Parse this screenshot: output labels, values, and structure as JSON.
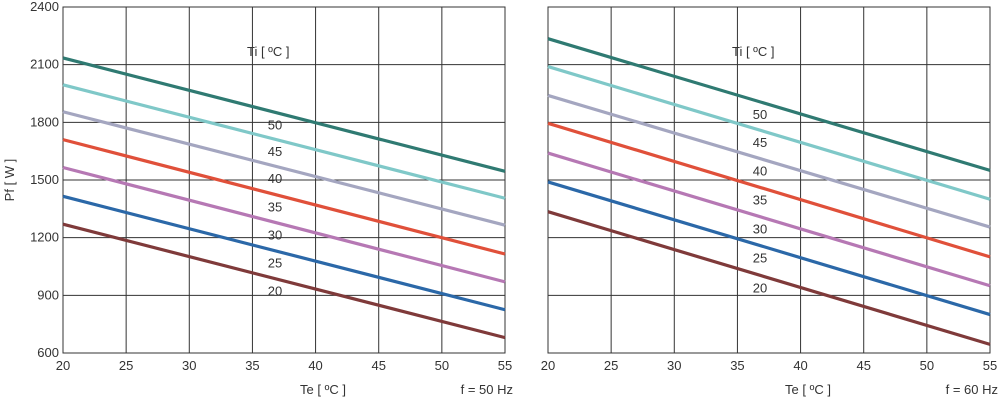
{
  "chart_data": [
    {
      "type": "line",
      "ylabel": "Pf  [ W ]",
      "xlabel": "Te  [ ºC ]",
      "condition": "f = 50 Hz",
      "legend_title": "Ti  [ ºC ]",
      "xlim": [
        20,
        55
      ],
      "ylim": [
        600,
        2400
      ],
      "xticks": [
        "20",
        "25",
        "30",
        "35",
        "40",
        "45",
        "50",
        "55"
      ],
      "yticks": [
        "600",
        "900",
        "1200",
        "1500",
        "1800",
        "2100",
        "2400"
      ],
      "grid": true,
      "series": [
        {
          "name": "50",
          "color": "#2f7a72",
          "x": [
            20,
            55
          ],
          "y": [
            2135,
            1545
          ]
        },
        {
          "name": "45",
          "color": "#7fc8c8",
          "x": [
            20,
            55
          ],
          "y": [
            1995,
            1405
          ]
        },
        {
          "name": "40",
          "color": "#a4a6c0",
          "x": [
            20,
            55
          ],
          "y": [
            1855,
            1265
          ]
        },
        {
          "name": "35",
          "color": "#e0503a",
          "x": [
            20,
            55
          ],
          "y": [
            1710,
            1115
          ]
        },
        {
          "name": "30",
          "color": "#b678b4",
          "x": [
            20,
            55
          ],
          "y": [
            1565,
            970
          ]
        },
        {
          "name": "25",
          "color": "#2b68a8",
          "x": [
            20,
            55
          ],
          "y": [
            1415,
            825
          ]
        },
        {
          "name": "20",
          "color": "#7f3a3a",
          "x": [
            20,
            55
          ],
          "y": [
            1270,
            680
          ]
        }
      ]
    },
    {
      "type": "line",
      "ylabel": "",
      "xlabel": "Te  [ ºC ]",
      "condition": "f = 60 Hz",
      "legend_title": "Ti  [ ºC ]",
      "xlim": [
        20,
        55
      ],
      "ylim": [
        600,
        2400
      ],
      "xticks": [
        "20",
        "25",
        "30",
        "35",
        "40",
        "45",
        "50",
        "55"
      ],
      "yticks": [],
      "grid": true,
      "series": [
        {
          "name": "50",
          "color": "#2f7a72",
          "x": [
            20,
            55
          ],
          "y": [
            2235,
            1550
          ]
        },
        {
          "name": "45",
          "color": "#7fc8c8",
          "x": [
            20,
            55
          ],
          "y": [
            2090,
            1400
          ]
        },
        {
          "name": "40",
          "color": "#a4a6c0",
          "x": [
            20,
            55
          ],
          "y": [
            1940,
            1255
          ]
        },
        {
          "name": "35",
          "color": "#e0503a",
          "x": [
            20,
            55
          ],
          "y": [
            1795,
            1100
          ]
        },
        {
          "name": "30",
          "color": "#b678b4",
          "x": [
            20,
            55
          ],
          "y": [
            1640,
            950
          ]
        },
        {
          "name": "25",
          "color": "#2b68a8",
          "x": [
            20,
            55
          ],
          "y": [
            1490,
            800
          ]
        },
        {
          "name": "20",
          "color": "#7f3a3a",
          "x": [
            20,
            55
          ],
          "y": [
            1335,
            645
          ]
        }
      ]
    }
  ]
}
